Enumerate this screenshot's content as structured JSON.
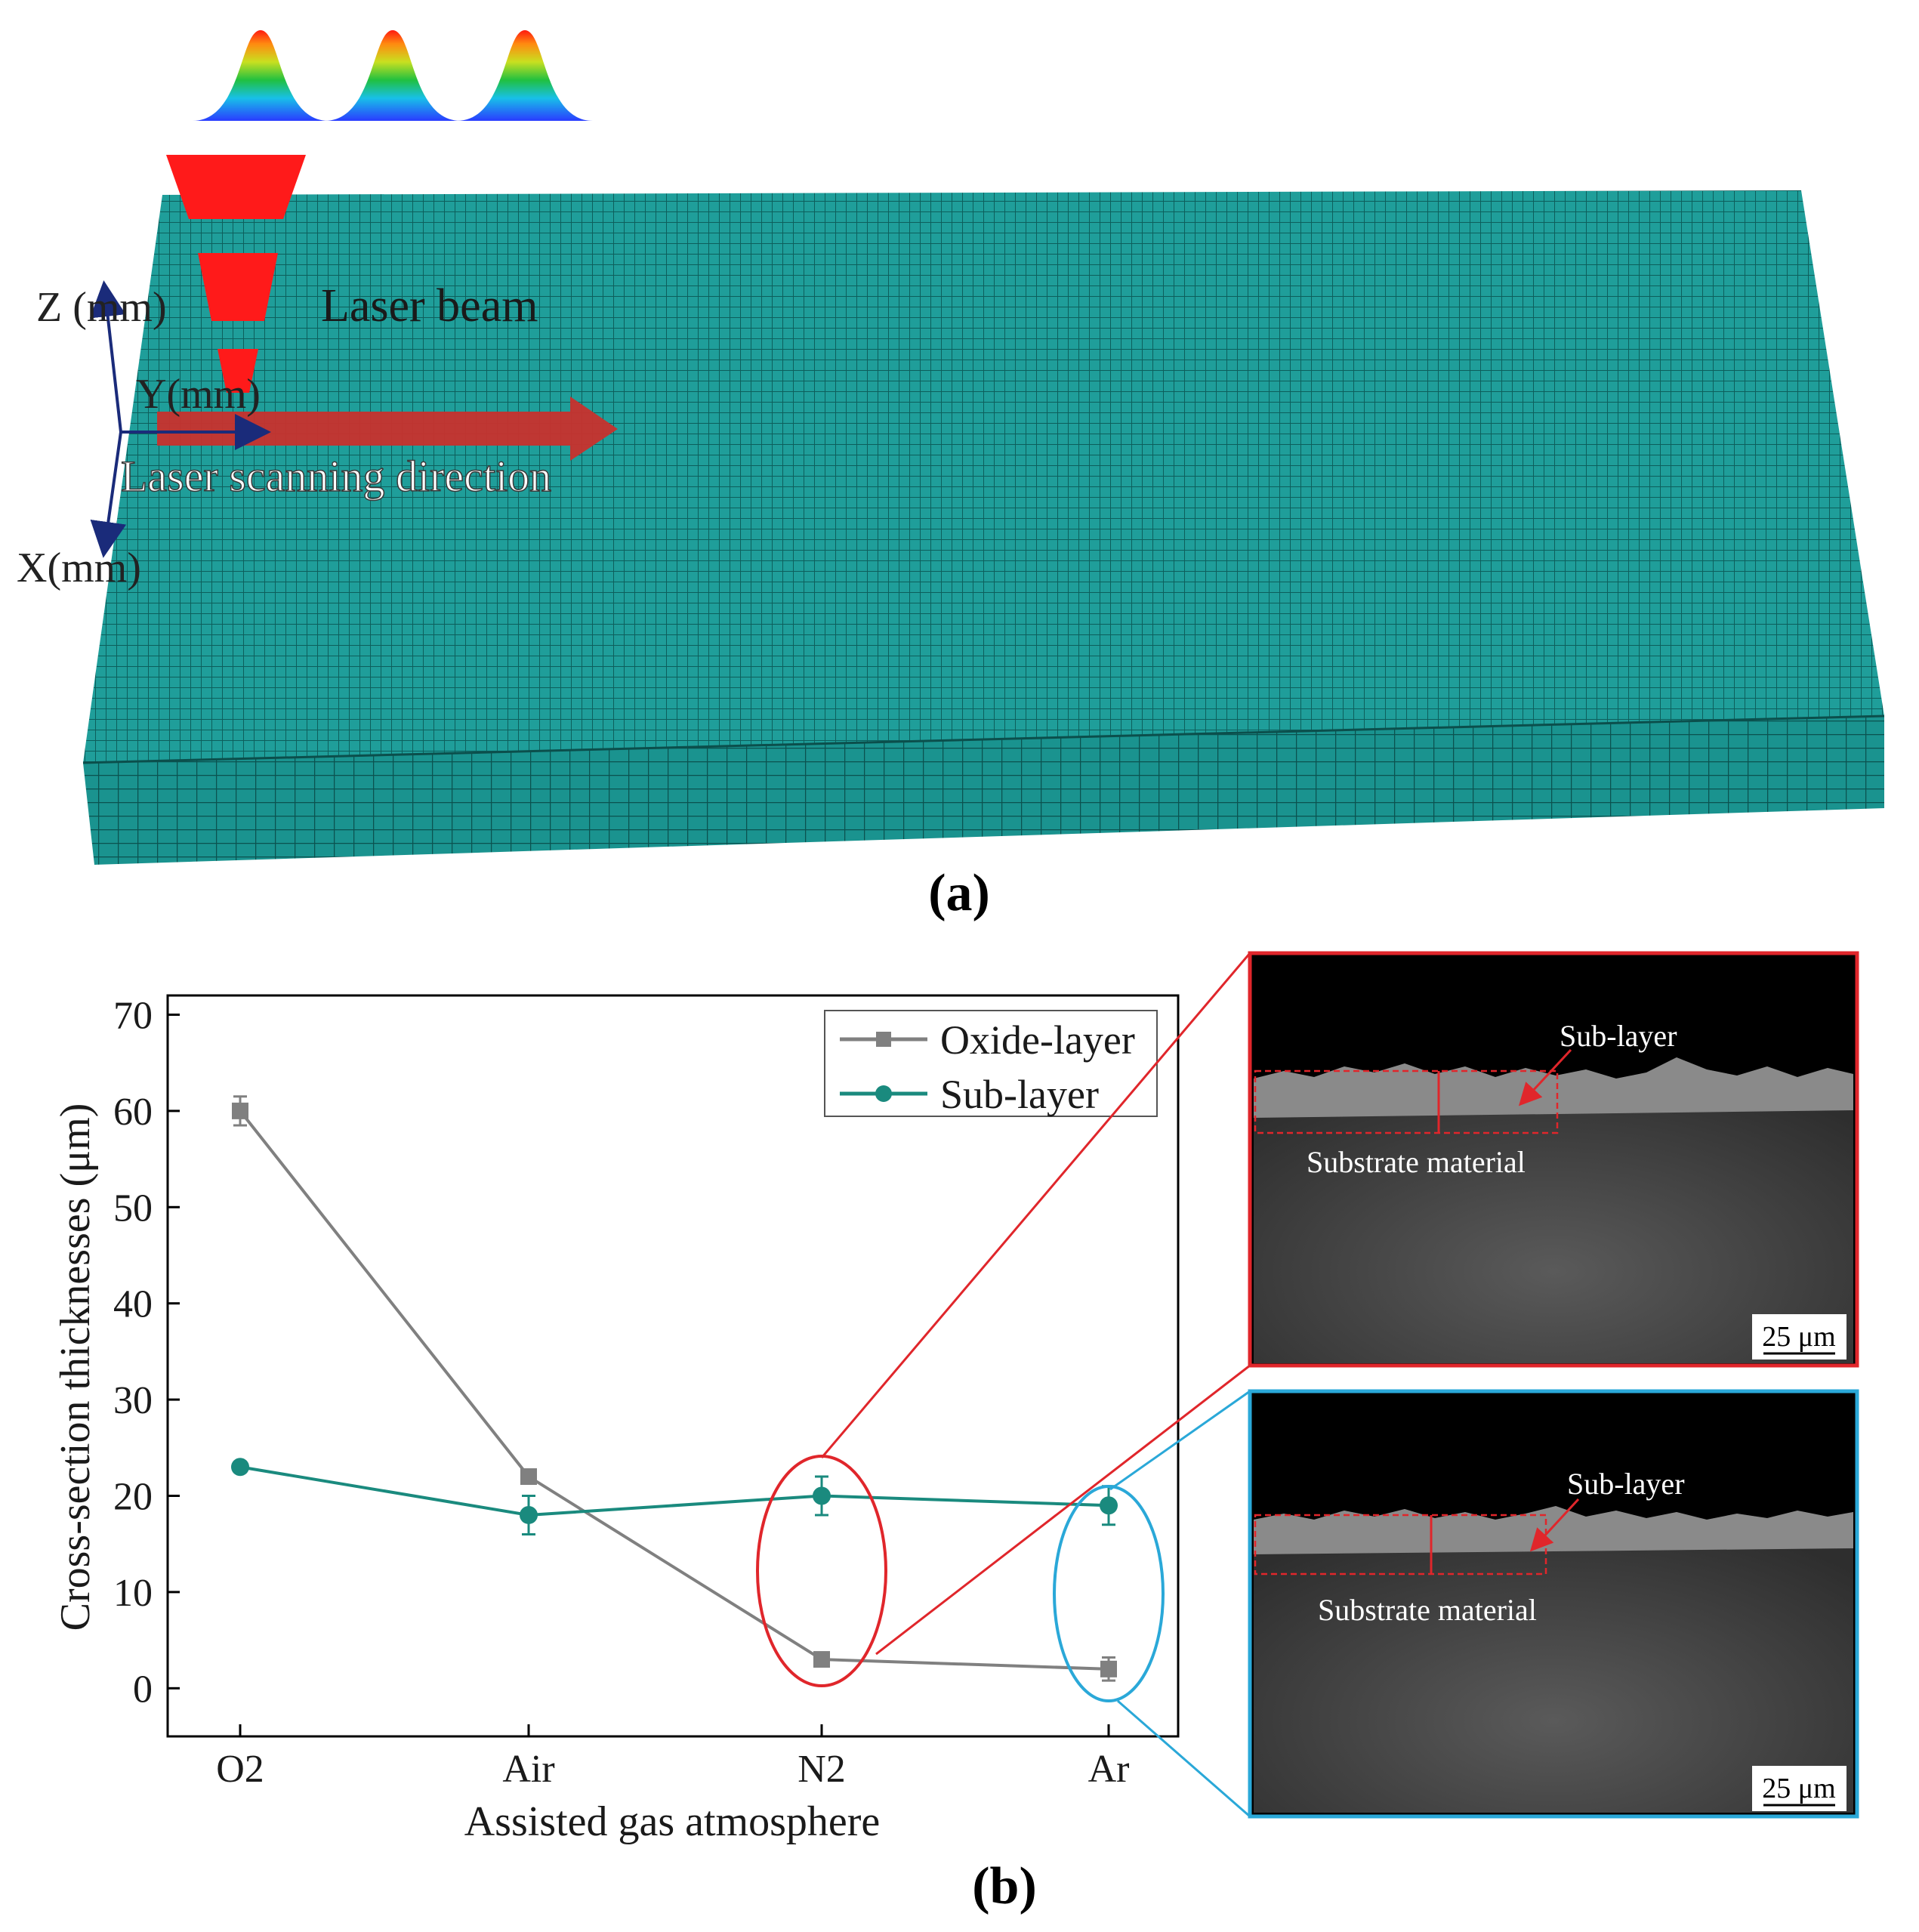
{
  "panel_a": {
    "label": "(a)",
    "laser_beam_label": "Laser beam",
    "scan_direction_label": "Laser scanning direction",
    "axes": {
      "z": "Z (mm)",
      "y": "Y(mm)",
      "x": "X(mm)"
    },
    "colors": {
      "mesh": "#1f9e9a",
      "mesh_line": "#0d5f5c",
      "beam": "#ff1a1a",
      "arrow": "#c8322d",
      "axis": "#1a2b7a"
    }
  },
  "panel_b": {
    "label": "(b)",
    "insets": [
      {
        "sub_layer_label": "Sub-layer",
        "substrate_label": "Substrate material",
        "scale_bar": "25 μm",
        "frame_color": "#e0262b"
      },
      {
        "sub_layer_label": "Sub-layer",
        "substrate_label": "Substrate material",
        "scale_bar": "25 μm",
        "frame_color": "#2aa8d8"
      }
    ]
  },
  "chart_data": {
    "type": "line",
    "categories": [
      "O2",
      "Air",
      "N2",
      "Ar"
    ],
    "xlabel": "Assisted gas atmosphere",
    "ylabel": "Cross-section thicknesses (μm)",
    "ylim": [
      -5,
      72
    ],
    "yticks": [
      0,
      10,
      20,
      30,
      40,
      50,
      60,
      70
    ],
    "grid": false,
    "legend_position": "top-right",
    "series": [
      {
        "name": "Oxide-layer",
        "marker": "square",
        "color": "#808080",
        "values": [
          60,
          22,
          3,
          2
        ],
        "errors": [
          1.5,
          0.5,
          0.5,
          1.2
        ]
      },
      {
        "name": "Sub-layer",
        "marker": "circle",
        "color": "#1a8a7e",
        "values": [
          23,
          18,
          20,
          19
        ],
        "errors": [
          0.5,
          2,
          2,
          2
        ]
      }
    ]
  }
}
